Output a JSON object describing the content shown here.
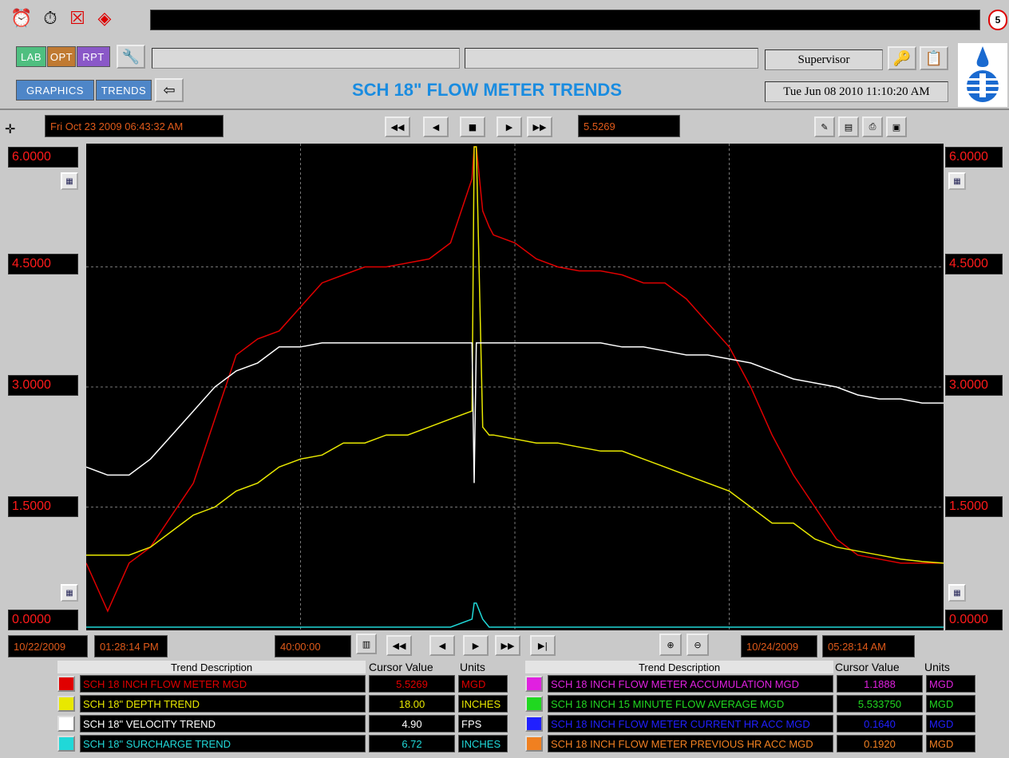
{
  "toolbar": {
    "icons": [
      "alarm-clock-icon",
      "alarm-set-icon",
      "alarm-disabled-icon",
      "warning-icon"
    ],
    "corner_badge": "5"
  },
  "header": {
    "nav": {
      "lab": "LAB",
      "opt": "OPT",
      "rpt": "RPT",
      "graphics": "GRAPHICS",
      "trends": "TRENDS"
    },
    "title": "SCH 18\" FLOW METER TRENDS",
    "user": "Supervisor",
    "datetime": "Tue Jun 08 2010 11:10:20 AM"
  },
  "controls": {
    "cursor_time": "Fri Oct 23 2009 06:43:32 AM",
    "cursor_value": "5.5269"
  },
  "axis": {
    "left": [
      "6.0000",
      "4.5000",
      "3.0000",
      "1.5000",
      "0.0000"
    ],
    "right": [
      "6.0000",
      "4.5000",
      "3.0000",
      "1.5000",
      "0.0000"
    ]
  },
  "timebar": {
    "start_date": "10/22/2009",
    "start_time": "01:28:14 PM",
    "span": "40:00:00",
    "end_date": "10/24/2009",
    "end_time": "05:28:14 AM"
  },
  "legend": {
    "col_desc": "Trend Description",
    "col_value": "Cursor Value",
    "col_units": "Units",
    "left": [
      {
        "desc": "SCH 18 INCH FLOW METER MGD",
        "value": "5.5269",
        "units": "MGD",
        "color": "#e00000"
      },
      {
        "desc": "SCH 18\" DEPTH TREND",
        "value": "18.00",
        "units": "INCHES",
        "color": "#e8e800"
      },
      {
        "desc": "SCH 18\" VELOCITY TREND",
        "value": "4.90",
        "units": "FPS",
        "color": "#ffffff"
      },
      {
        "desc": "SCH 18\" SURCHARGE TREND",
        "value": "6.72",
        "units": "INCHES",
        "color": "#20d8d8"
      }
    ],
    "right": [
      {
        "desc": "SCH 18 INCH FLOW METER ACCUMULATION MGD",
        "value": "1.1888",
        "units": "MGD",
        "color": "#e020e0"
      },
      {
        "desc": "SCH 18 INCH 15 MINUTE FLOW AVERAGE MGD",
        "value": "5.533750",
        "units": "MGD",
        "color": "#20d820"
      },
      {
        "desc": "SCH 18 INCH FLOW METER CURRENT HR ACC MGD",
        "value": "0.1640",
        "units": "MGD",
        "color": "#2020ff"
      },
      {
        "desc": "SCH 18 INCH FLOW METER PREVIOUS HR ACC MGD",
        "value": "0.1920",
        "units": "MGD",
        "color": "#f08020"
      }
    ]
  },
  "chart_data": {
    "type": "line",
    "ylim": [
      0,
      6
    ],
    "x_start": "10/22/2009 01:28:14 PM",
    "x_end": "10/24/2009 05:28:14 AM",
    "x_hours": [
      0,
      1,
      2,
      3,
      4,
      5,
      6,
      7,
      8,
      9,
      10,
      11,
      12,
      13,
      14,
      15,
      16,
      17,
      18,
      18.1,
      18.2,
      18.5,
      18.8,
      19,
      20,
      21,
      22,
      23,
      24,
      25,
      26,
      27,
      28,
      29,
      30,
      31,
      32,
      33,
      34,
      35,
      36,
      37,
      38,
      39,
      40
    ],
    "series": [
      {
        "name": "SCH 18 INCH FLOW METER MGD",
        "color": "#e00000",
        "values": [
          0.8,
          0.2,
          0.8,
          1.0,
          1.4,
          1.8,
          2.6,
          3.4,
          3.6,
          3.7,
          4.0,
          4.3,
          4.4,
          4.5,
          4.5,
          4.55,
          4.6,
          4.8,
          5.6,
          6.0,
          6.0,
          5.2,
          5.0,
          4.9,
          4.8,
          4.6,
          4.5,
          4.45,
          4.45,
          4.4,
          4.3,
          4.3,
          4.1,
          3.8,
          3.5,
          3.0,
          2.4,
          1.9,
          1.5,
          1.1,
          0.9,
          0.85,
          0.8,
          0.8,
          0.8
        ]
      },
      {
        "name": "SCH 18\" DEPTH TREND",
        "color": "#e8e800",
        "values": [
          0.9,
          0.9,
          0.9,
          1.0,
          1.2,
          1.4,
          1.5,
          1.7,
          1.8,
          2.0,
          2.1,
          2.15,
          2.3,
          2.3,
          2.4,
          2.4,
          2.5,
          2.6,
          2.7,
          6.0,
          6.0,
          2.5,
          2.4,
          2.4,
          2.35,
          2.3,
          2.3,
          2.25,
          2.2,
          2.2,
          2.1,
          2.0,
          1.9,
          1.8,
          1.7,
          1.5,
          1.3,
          1.3,
          1.1,
          1.0,
          0.95,
          0.9,
          0.85,
          0.82,
          0.8
        ]
      },
      {
        "name": "SCH 18\" VELOCITY TREND",
        "color": "#ffffff",
        "values": [
          2.0,
          1.9,
          1.9,
          2.1,
          2.4,
          2.7,
          3.0,
          3.2,
          3.3,
          3.5,
          3.5,
          3.55,
          3.55,
          3.55,
          3.55,
          3.55,
          3.55,
          3.55,
          3.55,
          1.8,
          3.55,
          3.55,
          3.55,
          3.55,
          3.55,
          3.55,
          3.55,
          3.55,
          3.55,
          3.5,
          3.5,
          3.45,
          3.4,
          3.4,
          3.35,
          3.3,
          3.2,
          3.1,
          3.05,
          3.0,
          2.9,
          2.85,
          2.85,
          2.8,
          2.8
        ]
      },
      {
        "name": "SCH 18\" SURCHARGE TREND",
        "color": "#20d8d8",
        "values": [
          0,
          0,
          0,
          0,
          0,
          0,
          0,
          0,
          0,
          0,
          0,
          0,
          0,
          0,
          0,
          0,
          0,
          0,
          0.1,
          0.3,
          0.3,
          0.1,
          0,
          0,
          0,
          0,
          0,
          0,
          0,
          0,
          0,
          0,
          0,
          0,
          0,
          0,
          0,
          0,
          0,
          0,
          0,
          0,
          0,
          0,
          0
        ]
      }
    ]
  }
}
